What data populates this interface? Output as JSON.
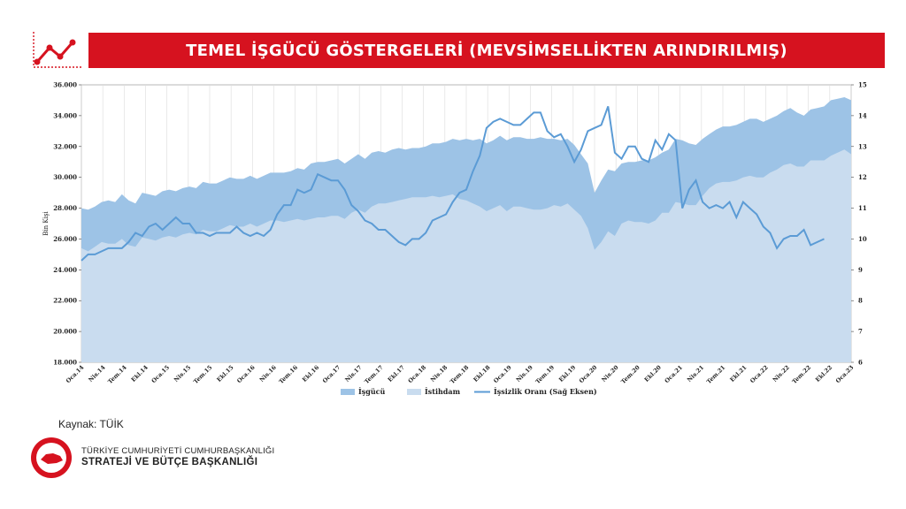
{
  "title": "TEMEL İŞGÜCÜ GÖSTERGELERİ (MEVSİMSELLİKTEN ARINDIRILMIŞ)",
  "source": "Kaynak: TÜİK",
  "org": {
    "line1": "TÜRKİYE CUMHURİYETİ CUMHURBAŞKANLIĞI",
    "line2": "STRATEJİ VE BÜTÇE BAŞKANLIĞI"
  },
  "colors": {
    "header": "#d6121f",
    "labor_force": "#9dc3e6",
    "employment": "#c9dcef",
    "unemployment": "#5b9bd5"
  },
  "chart_data": {
    "type": "area",
    "ylabel": "Bin Kişi",
    "ylim": [
      18000,
      36000
    ],
    "y_ticks": [
      "18.000",
      "20.000",
      "22.000",
      "24.000",
      "26.000",
      "28.000",
      "30.000",
      "32.000",
      "34.000",
      "36.000"
    ],
    "y2lim": [
      6,
      15
    ],
    "y2_ticks": [
      "6",
      "7",
      "8",
      "9",
      "10",
      "11",
      "12",
      "13",
      "14",
      "15"
    ],
    "x_tick_labels": [
      "Oca.14",
      "Nis.14",
      "Tem.14",
      "Ekl.14",
      "Oca.15",
      "Nis.15",
      "Tem.15",
      "Ekl.15",
      "Oca.16",
      "Nis.16",
      "Tem.16",
      "Ekl.16",
      "Oca.17",
      "Nis.17",
      "Tem.17",
      "Ekl.17",
      "Oca.18",
      "Nis.18",
      "Tem.18",
      "Ekl.18",
      "Oca.19",
      "Nis.19",
      "Tem.19",
      "Ekl.19",
      "Oca.20",
      "Nis.20",
      "Tem.20",
      "Ekl.20",
      "Oca.21",
      "Nis.21",
      "Tem.21",
      "Ekl.21",
      "Oca.22",
      "Nis.22",
      "Tem.22",
      "Ekl.22",
      "Oca.23"
    ],
    "legend": [
      "İşgücü",
      "İstihdam",
      "İşsizlik Oranı (Sağ Eksen)"
    ],
    "series": [
      {
        "name": "İşgücü",
        "axis": "left",
        "values": [
          28000,
          27900,
          28100,
          28400,
          28500,
          28400,
          28900,
          28500,
          28300,
          29000,
          28900,
          28800,
          29100,
          29200,
          29100,
          29300,
          29400,
          29300,
          29700,
          29600,
          29600,
          29800,
          30000,
          29900,
          29900,
          30100,
          29900,
          30100,
          30300,
          30300,
          30300,
          30400,
          30600,
          30500,
          30900,
          31000,
          31000,
          31100,
          31200,
          30900,
          31200,
          31500,
          31200,
          31600,
          31700,
          31600,
          31800,
          31900,
          31800,
          31900,
          31900,
          32000,
          32200,
          32200,
          32300,
          32500,
          32400,
          32500,
          32400,
          32500,
          32200,
          32400,
          32700,
          32400,
          32600,
          32600,
          32500,
          32500,
          32600,
          32500,
          32500,
          32400,
          32500,
          32100,
          31500,
          30900,
          29000,
          29800,
          30500,
          30400,
          30900,
          31000,
          31000,
          31100,
          31100,
          31300,
          31600,
          31800,
          32500,
          32400,
          32200,
          32100,
          32500,
          32800,
          33100,
          33300,
          33300,
          33400,
          33600,
          33800,
          33800,
          33600,
          33800,
          34000,
          34300,
          34500,
          34200,
          34000,
          34400,
          34500,
          34600,
          35000,
          35100,
          35200,
          35000
        ]
      },
      {
        "name": "İstihdam",
        "axis": "left",
        "values": [
          25400,
          25200,
          25500,
          25800,
          25700,
          25700,
          26000,
          25600,
          25500,
          26100,
          26000,
          25900,
          26100,
          26200,
          26100,
          26300,
          26400,
          26300,
          26600,
          26500,
          26500,
          26700,
          26900,
          26800,
          26800,
          27000,
          26800,
          27000,
          27200,
          27200,
          27100,
          27200,
          27300,
          27200,
          27300,
          27400,
          27400,
          27500,
          27500,
          27300,
          27700,
          27900,
          27700,
          28100,
          28300,
          28300,
          28400,
          28500,
          28600,
          28700,
          28700,
          28700,
          28800,
          28700,
          28800,
          28900,
          28600,
          28500,
          28300,
          28100,
          27800,
          28000,
          28200,
          27800,
          28100,
          28100,
          28000,
          27900,
          27900,
          28000,
          28200,
          28100,
          28300,
          27900,
          27500,
          26700,
          25300,
          25800,
          26500,
          26200,
          27000,
          27200,
          27100,
          27100,
          27000,
          27200,
          27700,
          27700,
          28400,
          28300,
          28200,
          28200,
          28800,
          29300,
          29600,
          29700,
          29700,
          29800,
          30000,
          30100,
          30000,
          30000,
          30300,
          30500,
          30800,
          30900,
          30700,
          30700,
          31100,
          31100,
          31100,
          31400,
          31600,
          31800,
          31500
        ]
      },
      {
        "name": "İşsizlik Oranı (Sağ Eksen)",
        "axis": "right",
        "values": [
          9.3,
          9.5,
          9.5,
          9.6,
          9.7,
          9.7,
          9.7,
          9.9,
          10.2,
          10.1,
          10.4,
          10.5,
          10.3,
          10.5,
          10.7,
          10.5,
          10.5,
          10.2,
          10.2,
          10.1,
          10.2,
          10.2,
          10.2,
          10.4,
          10.2,
          10.1,
          10.2,
          10.1,
          10.3,
          10.8,
          11.1,
          11.1,
          11.6,
          11.5,
          11.6,
          12.1,
          12.0,
          11.9,
          11.9,
          11.6,
          11.1,
          10.9,
          10.6,
          10.5,
          10.3,
          10.3,
          10.1,
          9.9,
          9.8,
          10.0,
          10.0,
          10.2,
          10.6,
          10.7,
          10.8,
          11.2,
          11.5,
          11.6,
          12.2,
          12.7,
          13.6,
          13.8,
          13.9,
          13.8,
          13.7,
          13.7,
          13.9,
          14.1,
          14.1,
          13.5,
          13.3,
          13.4,
          13.0,
          12.5,
          12.9,
          13.5,
          13.6,
          13.7,
          14.3,
          12.8,
          12.6,
          13.0,
          13.0,
          12.6,
          12.5,
          13.2,
          12.9,
          13.4,
          13.2,
          11.0,
          11.6,
          11.9,
          11.2,
          11.0,
          11.1,
          11.0,
          11.2,
          10.7,
          11.2,
          11.0,
          10.8,
          10.4,
          10.2,
          9.7,
          10.0,
          10.1,
          10.1,
          10.3,
          9.8,
          9.9,
          10.0
        ]
      }
    ]
  }
}
